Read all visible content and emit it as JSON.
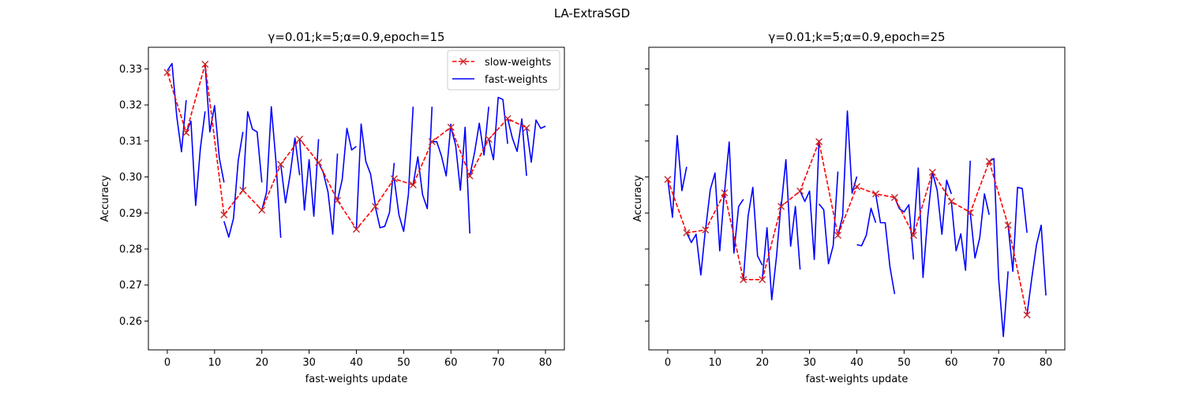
{
  "figure": {
    "suptitle": "LA-ExtraSGD"
  },
  "colors": {
    "slow": "#ff0000",
    "fast": "#0000ff",
    "marker_edge": "#4b0082"
  },
  "chart_data": [
    {
      "type": "line",
      "title": "γ=0.01;k=5;α=0.9,epoch=15",
      "xlabel": "fast-weights update",
      "ylabel": "Accuracy",
      "xlim": [
        -4,
        84
      ],
      "ylim": [
        0.252,
        0.336
      ],
      "xticks": [
        0,
        10,
        20,
        30,
        40,
        50,
        60,
        70,
        80
      ],
      "yticks": [
        0.26,
        0.27,
        0.28,
        0.29,
        0.3,
        0.31,
        0.32,
        0.33
      ],
      "ytick_labels": [
        "0.26",
        "0.27",
        "0.28",
        "0.29",
        "0.30",
        "0.31",
        "0.32",
        "0.33"
      ],
      "show_y_tick_labels": true,
      "legend": {
        "position": "upper right",
        "entries": [
          "slow-weights",
          "fast-weights"
        ]
      },
      "series": [
        {
          "name": "slow-weights",
          "style": "dashed-x",
          "x": [
            0,
            4,
            8,
            12,
            16,
            20,
            24,
            28,
            32,
            36,
            40,
            44,
            48,
            52,
            56,
            60,
            64,
            68,
            72,
            76
          ],
          "y": [
            0.329,
            0.3123,
            0.3313,
            0.2895,
            0.2963,
            0.2908,
            0.3035,
            0.3105,
            0.304,
            0.2935,
            0.2855,
            0.2918,
            0.2995,
            0.2978,
            0.3098,
            0.3138,
            0.3003,
            0.3105,
            0.3162,
            0.3136
          ]
        },
        {
          "name": "fast-weights",
          "style": "solid",
          "segments": [
            {
              "x": [
                0,
                1,
                2,
                3,
                4
              ],
              "y": [
                0.3295,
                0.3315,
                0.3168,
                0.307,
                0.3213
              ]
            },
            {
              "x": [
                4,
                5,
                6,
                7,
                8
              ],
              "y": [
                0.3123,
                0.3155,
                0.2921,
                0.308,
                0.3182
              ]
            },
            {
              "x": [
                8,
                9,
                10,
                11,
                12
              ],
              "y": [
                0.3313,
                0.3125,
                0.3198,
                0.3053,
                0.2985
              ]
            },
            {
              "x": [
                12,
                13,
                14,
                15,
                16
              ],
              "y": [
                0.2877,
                0.2833,
                0.2885,
                0.3045,
                0.3125
              ]
            },
            {
              "x": [
                16,
                17,
                18,
                19,
                20
              ],
              "y": [
                0.2963,
                0.3181,
                0.3133,
                0.3125,
                0.2985
              ]
            },
            {
              "x": [
                20,
                21,
                22,
                23,
                24
              ],
              "y": [
                0.2908,
                0.2958,
                0.3195,
                0.3041,
                0.2831
              ]
            },
            {
              "x": [
                24,
                25,
                26,
                27,
                28
              ],
              "y": [
                0.3035,
                0.2928,
                0.3008,
                0.3108,
                0.3005
              ]
            },
            {
              "x": [
                28,
                29,
                30,
                31,
                32
              ],
              "y": [
                0.3105,
                0.2908,
                0.3048,
                0.2891,
                0.3105
              ]
            },
            {
              "x": [
                32,
                33,
                34,
                35,
                36
              ],
              "y": [
                0.304,
                0.3012,
                0.2958,
                0.2841,
                0.3065
              ]
            },
            {
              "x": [
                36,
                37,
                38,
                39,
                40
              ],
              "y": [
                0.2935,
                0.2993,
                0.3135,
                0.3075,
                0.3085
              ]
            },
            {
              "x": [
                40,
                41,
                42,
                43,
                44
              ],
              "y": [
                0.2855,
                0.3147,
                0.3043,
                0.3008,
                0.2922
              ]
            },
            {
              "x": [
                44,
                45,
                46,
                47,
                48
              ],
              "y": [
                0.2918,
                0.2859,
                0.2863,
                0.2901,
                0.3039
              ]
            },
            {
              "x": [
                48,
                49,
                50,
                51,
                52
              ],
              "y": [
                0.2995,
                0.2895,
                0.2849,
                0.2951,
                0.3195
              ]
            },
            {
              "x": [
                52,
                53,
                54,
                55,
                56
              ],
              "y": [
                0.2978,
                0.3056,
                0.2951,
                0.2912,
                0.3195
              ]
            },
            {
              "x": [
                56,
                57,
                58,
                59,
                60
              ],
              "y": [
                0.3098,
                0.3098,
                0.3058,
                0.3003,
                0.3148
              ]
            },
            {
              "x": [
                60,
                61,
                62,
                63,
                64
              ],
              "y": [
                0.3138,
                0.3088,
                0.2963,
                0.3138,
                0.2843
              ]
            },
            {
              "x": [
                64,
                65,
                66,
                67,
                68
              ],
              "y": [
                0.3003,
                0.3068,
                0.3149,
                0.3061,
                0.3195
              ]
            },
            {
              "x": [
                68,
                69,
                70,
                71,
                72
              ],
              "y": [
                0.3105,
                0.3048,
                0.3221,
                0.3215,
                0.3092
              ]
            },
            {
              "x": [
                72,
                73,
                74,
                75,
                76
              ],
              "y": [
                0.3162,
                0.3108,
                0.3071,
                0.3161,
                0.3003
              ]
            },
            {
              "x": [
                76,
                77,
                78,
                79,
                80
              ],
              "y": [
                0.3136,
                0.3041,
                0.3158,
                0.3135,
                0.3141
              ]
            }
          ]
        }
      ]
    },
    {
      "type": "line",
      "title": "γ=0.01;k=5;α=0.9,epoch=25",
      "xlabel": "fast-weights update",
      "ylabel": "Accuracy",
      "xlim": [
        -4,
        84
      ],
      "ylim": [
        0.252,
        0.336
      ],
      "xticks": [
        0,
        10,
        20,
        30,
        40,
        50,
        60,
        70,
        80
      ],
      "yticks": [
        0.26,
        0.27,
        0.28,
        0.29,
        0.3,
        0.31,
        0.32,
        0.33
      ],
      "show_y_tick_labels": false,
      "series": [
        {
          "name": "slow-weights",
          "style": "dashed-x",
          "x": [
            0,
            4,
            8,
            12,
            16,
            20,
            24,
            28,
            32,
            36,
            40,
            44,
            48,
            52,
            56,
            60,
            64,
            68,
            72,
            76
          ],
          "y": [
            0.2993,
            0.2845,
            0.2853,
            0.2956,
            0.2715,
            0.2715,
            0.2918,
            0.2961,
            0.3098,
            0.2838,
            0.2973,
            0.2953,
            0.2943,
            0.2838,
            0.3013,
            0.2932,
            0.2901,
            0.3043,
            0.2866,
            0.2617
          ]
        },
        {
          "name": "fast-weights",
          "style": "solid",
          "segments": [
            {
              "x": [
                0,
                1,
                2,
                3,
                4
              ],
              "y": [
                0.2995,
                0.2888,
                0.3115,
                0.2962,
                0.3028
              ]
            },
            {
              "x": [
                4,
                5,
                6,
                7,
                8
              ],
              "y": [
                0.2845,
                0.2818,
                0.2841,
                0.2728,
                0.2858
              ]
            },
            {
              "x": [
                8,
                9,
                10,
                11,
                12
              ],
              "y": [
                0.2853,
                0.2965,
                0.3011,
                0.2795,
                0.2962
              ]
            },
            {
              "x": [
                12,
                13,
                14,
                15,
                16
              ],
              "y": [
                0.2956,
                0.3097,
                0.2789,
                0.2918,
                0.2938
              ]
            },
            {
              "x": [
                16,
                17,
                18,
                19,
                20
              ],
              "y": [
                0.2715,
                0.2891,
                0.2971,
                0.2781,
                0.2755
              ]
            },
            {
              "x": [
                20,
                21,
                22,
                23,
                24
              ],
              "y": [
                0.2715,
                0.2859,
                0.2659,
                0.2778,
                0.2931
              ]
            },
            {
              "x": [
                24,
                25,
                26,
                27,
                28
              ],
              "y": [
                0.2918,
                0.3048,
                0.2808,
                0.2918,
                0.2743
              ]
            },
            {
              "x": [
                28,
                29,
                30,
                31,
                32
              ],
              "y": [
                0.2961,
                0.2932,
                0.2961,
                0.2771,
                0.3098
              ]
            },
            {
              "x": [
                32,
                33,
                34,
                35,
                36
              ],
              "y": [
                0.2925,
                0.2909,
                0.2759,
                0.2809,
                0.3015
              ]
            },
            {
              "x": [
                36,
                37,
                38,
                39,
                40
              ],
              "y": [
                0.2838,
                0.2891,
                0.3183,
                0.2955,
                0.3001
              ]
            },
            {
              "x": [
                40,
                41,
                42,
                43,
                44
              ],
              "y": [
                0.2812,
                0.2809,
                0.2838,
                0.2913,
                0.2873
              ]
            },
            {
              "x": [
                44,
                45,
                46,
                47,
                48
              ],
              "y": [
                0.2953,
                0.2873,
                0.2873,
                0.2751,
                0.2675
              ]
            },
            {
              "x": [
                48,
                49,
                50,
                51,
                52
              ],
              "y": [
                0.2943,
                0.2912,
                0.2903,
                0.2923,
                0.2771
              ]
            },
            {
              "x": [
                52,
                53,
                54,
                55,
                56
              ],
              "y": [
                0.2838,
                0.3025,
                0.2721,
                0.2888,
                0.3013
              ]
            },
            {
              "x": [
                56,
                57,
                58,
                59,
                60
              ],
              "y": [
                0.3013,
                0.2963,
                0.2841,
                0.2991,
                0.2953
              ]
            },
            {
              "x": [
                60,
                61,
                62,
                63,
                64
              ],
              "y": [
                0.2932,
                0.2795,
                0.2842,
                0.2741,
                0.3045
              ]
            },
            {
              "x": [
                64,
                65,
                66,
                67,
                68
              ],
              "y": [
                0.2901,
                0.2775,
                0.2831,
                0.2953,
                0.2895
              ]
            },
            {
              "x": [
                68,
                69,
                70,
                71,
                72
              ],
              "y": [
                0.3043,
                0.3051,
                0.2718,
                0.2557,
                0.2738
              ]
            },
            {
              "x": [
                72,
                73,
                74,
                75,
                76
              ],
              "y": [
                0.2866,
                0.2738,
                0.2971,
                0.2968,
                0.2845
              ]
            },
            {
              "x": [
                76,
                77,
                78,
                79,
                80
              ],
              "y": [
                0.2617,
                0.2718,
                0.2811,
                0.2866,
                0.2671
              ]
            }
          ]
        }
      ]
    }
  ]
}
